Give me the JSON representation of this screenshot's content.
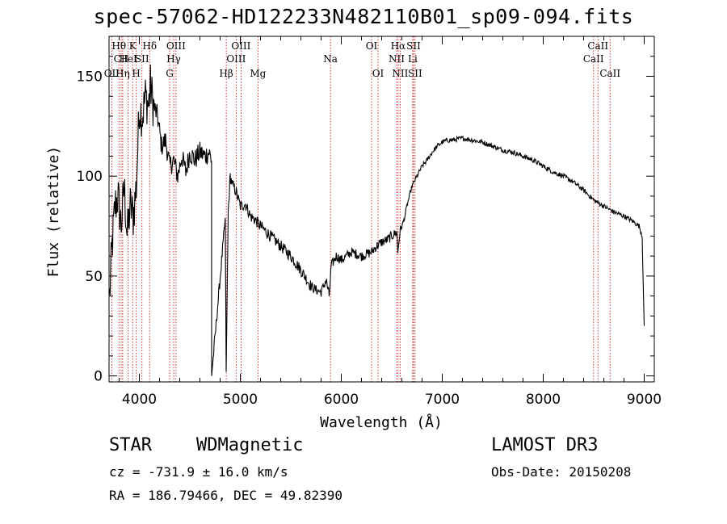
{
  "header": {
    "title": "spec-57062-HD122233N482110B01_sp09-094.fits"
  },
  "info": {
    "class_label": "STAR",
    "subclass": "WDMagnetic",
    "survey": "LAMOST DR3",
    "cz": "cz = -731.9 ± 16.0 km/s",
    "obs_date": "Obs-Date: 20150208",
    "radec": "RA = 186.79466, DEC =  49.82390"
  },
  "chart_data": {
    "type": "line",
    "title": "spec-57062-HD122233N482110B01_sp09-094.fits",
    "xlabel": "Wavelength (Å)",
    "ylabel": "Flux (relative)",
    "xlim": [
      3700,
      9100
    ],
    "ylim": [
      -3,
      170
    ],
    "xticks": [
      4000,
      5000,
      6000,
      7000,
      8000,
      9000
    ],
    "yticks": [
      0,
      50,
      100,
      150
    ],
    "grid": false,
    "series": [
      {
        "name": "spectrum",
        "x": [
          3705,
          3730,
          3760,
          3790,
          3820,
          3850,
          3880,
          3910,
          3940,
          3970,
          4000,
          4030,
          4060,
          4090,
          4110,
          4140,
          4180,
          4220,
          4260,
          4300,
          4340,
          4380,
          4420,
          4460,
          4500,
          4550,
          4600,
          4650,
          4690,
          4715,
          4716,
          4850,
          4860,
          4880,
          4900,
          4920,
          4940,
          4960,
          5000,
          5050,
          5100,
          5150,
          5200,
          5300,
          5400,
          5500,
          5600,
          5700,
          5750,
          5800,
          5850,
          5880,
          5900,
          5950,
          6000,
          6100,
          6200,
          6300,
          6350,
          6400,
          6450,
          6500,
          6550,
          6560,
          6580,
          6620,
          6650,
          6700,
          6750,
          6800,
          6850,
          6900,
          6950,
          7000,
          7050,
          7100,
          7200,
          7300,
          7400,
          7500,
          7600,
          7700,
          7800,
          7900,
          8000,
          8100,
          8200,
          8300,
          8400,
          8500,
          8600,
          8700,
          8800,
          8900,
          8950,
          8980,
          8995,
          9000
        ],
        "values": [
          40,
          65,
          85,
          90,
          75,
          95,
          70,
          85,
          80,
          95,
          135,
          130,
          140,
          135,
          145,
          135,
          130,
          115,
          118,
          105,
          108,
          100,
          110,
          102,
          112,
          108,
          112,
          110,
          112,
          108,
          0,
          78,
          2,
          82,
          100,
          96,
          94,
          92,
          85,
          86,
          80,
          78,
          75,
          70,
          65,
          60,
          53,
          45,
          43,
          42,
          48,
          40,
          55,
          60,
          58,
          62,
          60,
          62,
          65,
          67,
          68,
          70,
          72,
          62,
          72,
          78,
          85,
          95,
          100,
          105,
          108,
          112,
          115,
          117,
          118,
          118,
          119,
          118,
          117,
          115,
          113,
          112,
          110,
          108,
          105,
          102,
          100,
          97,
          93,
          88,
          85,
          82,
          80,
          77,
          75,
          70,
          35,
          25
        ]
      }
    ],
    "lines": [
      {
        "w": 3727,
        "label": "OII",
        "row": 3
      },
      {
        "w": 3798,
        "label": "Hθ",
        "row": 1
      },
      {
        "w": 3820,
        "label": "CII",
        "row": 2
      },
      {
        "w": 3835,
        "label": "Hη",
        "row": 3
      },
      {
        "w": 3889,
        "label": "HeI",
        "row": 2
      },
      {
        "w": 3934,
        "label": "K",
        "row": 1
      },
      {
        "w": 3969,
        "label": "H",
        "row": 3
      },
      {
        "w": 4026,
        "label": "SII",
        "row": 2
      },
      {
        "w": 4102,
        "label": "Hδ",
        "row": 1
      },
      {
        "w": 4300,
        "label": "G",
        "row": 3
      },
      {
        "w": 4340,
        "label": "Hγ",
        "row": 2
      },
      {
        "w": 4363,
        "label": "OIII",
        "row": 1
      },
      {
        "w": 4861,
        "label": "Hβ",
        "row": 3
      },
      {
        "w": 4959,
        "label": "OIII",
        "row": 2
      },
      {
        "w": 5007,
        "label": "OIII",
        "row": 1
      },
      {
        "w": 5175,
        "label": "Mg",
        "row": 3
      },
      {
        "w": 5893,
        "label": "Na",
        "row": 2
      },
      {
        "w": 6300,
        "label": "OI",
        "row": 1
      },
      {
        "w": 6364,
        "label": "OI",
        "row": 3
      },
      {
        "w": 6548,
        "label": "NII",
        "row": 2
      },
      {
        "w": 6563,
        "label": "Hα",
        "row": 1
      },
      {
        "w": 6583,
        "label": "NII",
        "row": 3
      },
      {
        "w": 6707,
        "label": "Li",
        "row": 2
      },
      {
        "w": 6716,
        "label": "SII",
        "row": 1
      },
      {
        "w": 6731,
        "label": "SII",
        "row": 3
      },
      {
        "w": 8498,
        "label": "CaII",
        "row": 2
      },
      {
        "w": 8542,
        "label": "CaII",
        "row": 1
      },
      {
        "w": 8662,
        "label": "CaII",
        "row": 3
      }
    ]
  }
}
